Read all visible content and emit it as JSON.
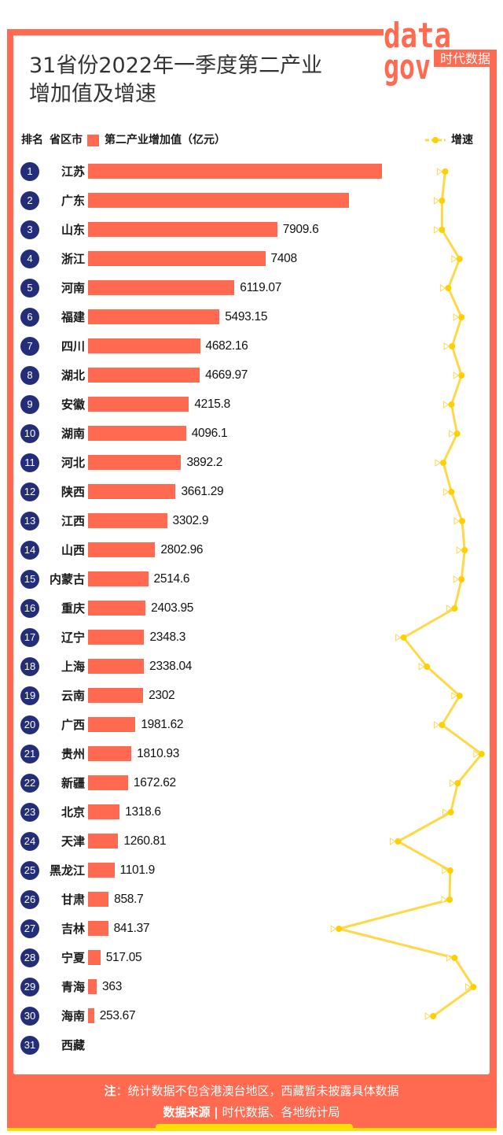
{
  "title": {
    "line1": "31省份2022年一季度第二产业",
    "line2": "增加值及增速"
  },
  "logo": {
    "top": "data",
    "bottom": "gov",
    "badge": "时代数据"
  },
  "legend": {
    "rank": "排名",
    "region": "省区市",
    "bar_series": "第二产业增加值（亿元）",
    "line_series": "增速"
  },
  "colors": {
    "frame": "#ff6a50",
    "bar": "#ff6a50",
    "rank_badge": "#232d7a",
    "line": "#ffd84a",
    "dot": "#ffd000",
    "label_border": "#f7d85a",
    "footer_accent": "#ffe000"
  },
  "chart_data": {
    "type": "bar",
    "title": "31省份2022年一季度第二产业增加值及增速",
    "xlabel": "",
    "ylabel": "",
    "orientation": "horizontal",
    "categories": [
      "江苏",
      "广东",
      "山东",
      "浙江",
      "河南",
      "福建",
      "四川",
      "湖北",
      "安徽",
      "湖南",
      "河北",
      "陕西",
      "江西",
      "山西",
      "内蒙古",
      "重庆",
      "辽宁",
      "上海",
      "云南",
      "广西",
      "贵州",
      "新疆",
      "北京",
      "天津",
      "黑龙江",
      "甘肃",
      "吉林",
      "宁夏",
      "青海",
      "海南",
      "西藏"
    ],
    "series": [
      {
        "name": "第二产业增加值（亿元）",
        "type": "bar",
        "values": [
          12285.2,
          10920.95,
          7909.6,
          7408,
          6119.07,
          5493.15,
          4682.16,
          4669.97,
          4215.8,
          4096.1,
          3892.2,
          3661.29,
          3302.9,
          2802.96,
          2514.6,
          2403.95,
          2348.3,
          2338.04,
          2302,
          1981.62,
          1810.93,
          1672.62,
          1318.6,
          1260.81,
          1101.9,
          858.7,
          841.37,
          517.05,
          363,
          253.67,
          null
        ]
      },
      {
        "name": "增速",
        "type": "line",
        "unit": "%",
        "values": [
          5.3,
          4.8,
          4.8,
          7.6,
          5.8,
          7.9,
          6.4,
          7.9,
          6.3,
          7.2,
          5.0,
          6.3,
          8.0,
          8.4,
          7.9,
          6.8,
          -1.3,
          2.4,
          7.6,
          4.8,
          11.1,
          7.3,
          6.2,
          -2.2,
          6.1,
          6.0,
          -11.6,
          6.8,
          9.8,
          3.4,
          null
        ]
      }
    ],
    "rows": [
      {
        "rank": "1",
        "province": "江苏",
        "value_label": "12285.2",
        "growth_label": "5.3%"
      },
      {
        "rank": "2",
        "province": "广东",
        "value_label": "10920.95",
        "growth_label": "4.8%"
      },
      {
        "rank": "3",
        "province": "山东",
        "value_label": "7909.6",
        "growth_label": "4.8%"
      },
      {
        "rank": "4",
        "province": "浙江",
        "value_label": "7408",
        "growth_label": "7.6%"
      },
      {
        "rank": "5",
        "province": "河南",
        "value_label": "6119.07",
        "growth_label": "5.8%"
      },
      {
        "rank": "6",
        "province": "福建",
        "value_label": "5493.15",
        "growth_label": "7.9%"
      },
      {
        "rank": "7",
        "province": "四川",
        "value_label": "4682.16",
        "growth_label": "6.4%"
      },
      {
        "rank": "8",
        "province": "湖北",
        "value_label": "4669.97",
        "growth_label": "7.9%"
      },
      {
        "rank": "9",
        "province": "安徽",
        "value_label": "4215.8",
        "growth_label": "6.3%"
      },
      {
        "rank": "10",
        "province": "湖南",
        "value_label": "4096.1",
        "growth_label": "7.2%"
      },
      {
        "rank": "11",
        "province": "河北",
        "value_label": "3892.2",
        "growth_label": "5.0%"
      },
      {
        "rank": "12",
        "province": "陕西",
        "value_label": "3661.29",
        "growth_label": "6.3%"
      },
      {
        "rank": "13",
        "province": "江西",
        "value_label": "3302.9",
        "growth_label": "8.0%"
      },
      {
        "rank": "14",
        "province": "山西",
        "value_label": "2802.96",
        "growth_label": "8.4%"
      },
      {
        "rank": "15",
        "province": "内蒙古",
        "value_label": "2514.6",
        "growth_label": "7.9%"
      },
      {
        "rank": "16",
        "province": "重庆",
        "value_label": "2403.95",
        "growth_label": "6.8%"
      },
      {
        "rank": "17",
        "province": "辽宁",
        "value_label": "2348.3",
        "growth_label": "−1.3%"
      },
      {
        "rank": "18",
        "province": "上海",
        "value_label": "2338.04",
        "growth_label": "2.4%"
      },
      {
        "rank": "19",
        "province": "云南",
        "value_label": "2302",
        "growth_label": "7.6%"
      },
      {
        "rank": "20",
        "province": "广西",
        "value_label": "1981.62",
        "growth_label": "4.8%"
      },
      {
        "rank": "21",
        "province": "贵州",
        "value_label": "1810.93",
        "growth_label": "11.1%"
      },
      {
        "rank": "22",
        "province": "新疆",
        "value_label": "1672.62",
        "growth_label": "7.3%"
      },
      {
        "rank": "23",
        "province": "北京",
        "value_label": "1318.6",
        "growth_label": "6.2%"
      },
      {
        "rank": "24",
        "province": "天津",
        "value_label": "1260.81",
        "growth_label": "−2.2%"
      },
      {
        "rank": "25",
        "province": "黑龙江",
        "value_label": "1101.9",
        "growth_label": "6.1%"
      },
      {
        "rank": "26",
        "province": "甘肃",
        "value_label": "858.7",
        "growth_label": "6.0%"
      },
      {
        "rank": "27",
        "province": "吉林",
        "value_label": "841.37",
        "growth_label": "−11.6%"
      },
      {
        "rank": "28",
        "province": "宁夏",
        "value_label": "517.05",
        "growth_label": "6.8%"
      },
      {
        "rank": "29",
        "province": "青海",
        "value_label": "363",
        "growth_label": "9.8%"
      },
      {
        "rank": "30",
        "province": "海南",
        "value_label": "253.67",
        "growth_label": "3.4%"
      },
      {
        "rank": "31",
        "province": "西藏",
        "value_label": null,
        "growth_label": null
      }
    ],
    "legend_position": "top",
    "grid": false
  },
  "footer": {
    "note_label": "注",
    "note_text": "：统计数据不包含港澳台地区，西藏暂未披露具体数据",
    "source_label": "数据来源",
    "separator": "|",
    "source_text": "时代数据、各地统计局"
  }
}
